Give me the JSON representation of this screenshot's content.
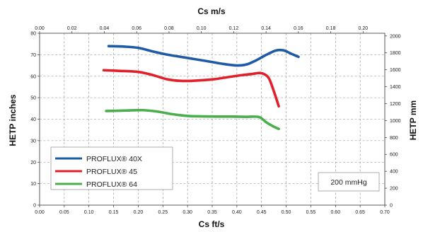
{
  "chart_data": {
    "type": "line",
    "title": "",
    "xlabel_bottom": "Cs  ft/s",
    "xlabel_top": "Cs  m/s",
    "ylabel_left": "HETP inches",
    "ylabel_right": "HETP mm",
    "xlim_bottom": [
      0,
      0.7
    ],
    "xlim_top": [
      0,
      0.2134
    ],
    "ylim_left": [
      0,
      80
    ],
    "ylim_right": [
      0,
      2032
    ],
    "xticks_bottom": [
      "0.00",
      "0.05",
      "0.10",
      "0.15",
      "0.20",
      "0.25",
      "0.30",
      "0.35",
      "0.40",
      "0.45",
      "0.50",
      "0.55",
      "0.60",
      "0.65",
      "0.70"
    ],
    "xticks_top": [
      "0.00",
      "0.02",
      "0.04",
      "0.06",
      "0.08",
      "0.10",
      "0.12",
      "0.14",
      "0.16",
      "0.18",
      "0.20"
    ],
    "yticks_left": [
      "0",
      "10",
      "20",
      "30",
      "40",
      "50",
      "60",
      "70",
      "80"
    ],
    "yticks_right": [
      "0",
      "200",
      "400",
      "600",
      "800",
      "1000",
      "1200",
      "1400",
      "1600",
      "1800",
      "2000"
    ],
    "grid": true,
    "legend_position": "bottom-left",
    "annotation": "200 mmHg",
    "series": [
      {
        "name": "PROFLUX® 40X",
        "color": "#1f5aa6",
        "x": [
          0.14,
          0.17,
          0.2,
          0.23,
          0.26,
          0.3,
          0.34,
          0.37,
          0.4,
          0.42,
          0.44,
          0.46,
          0.48,
          0.495,
          0.51,
          0.525
        ],
        "y": [
          74,
          73.8,
          73.2,
          71.5,
          70,
          68.5,
          67,
          65.8,
          65,
          65.5,
          67.5,
          70,
          72,
          72,
          70.5,
          69
        ]
      },
      {
        "name": "PROFLUX® 45",
        "color": "#e0202a",
        "x": [
          0.13,
          0.16,
          0.2,
          0.23,
          0.26,
          0.29,
          0.32,
          0.35,
          0.38,
          0.41,
          0.43,
          0.445,
          0.455,
          0.465,
          0.475,
          0.485
        ],
        "y": [
          62.8,
          62.5,
          62,
          60.5,
          58.5,
          57.8,
          58,
          58.5,
          59.5,
          60.5,
          61,
          61.5,
          61,
          59,
          53,
          46
        ]
      },
      {
        "name": "PROFLUX® 64",
        "color": "#4cae4c",
        "x": [
          0.135,
          0.17,
          0.21,
          0.24,
          0.27,
          0.3,
          0.33,
          0.36,
          0.39,
          0.42,
          0.445,
          0.46,
          0.475,
          0.485
        ],
        "y": [
          43.8,
          44,
          44.2,
          43.5,
          42.3,
          41.5,
          41.3,
          41.2,
          41.2,
          41.1,
          41,
          38.5,
          36.5,
          35.5
        ]
      }
    ]
  }
}
